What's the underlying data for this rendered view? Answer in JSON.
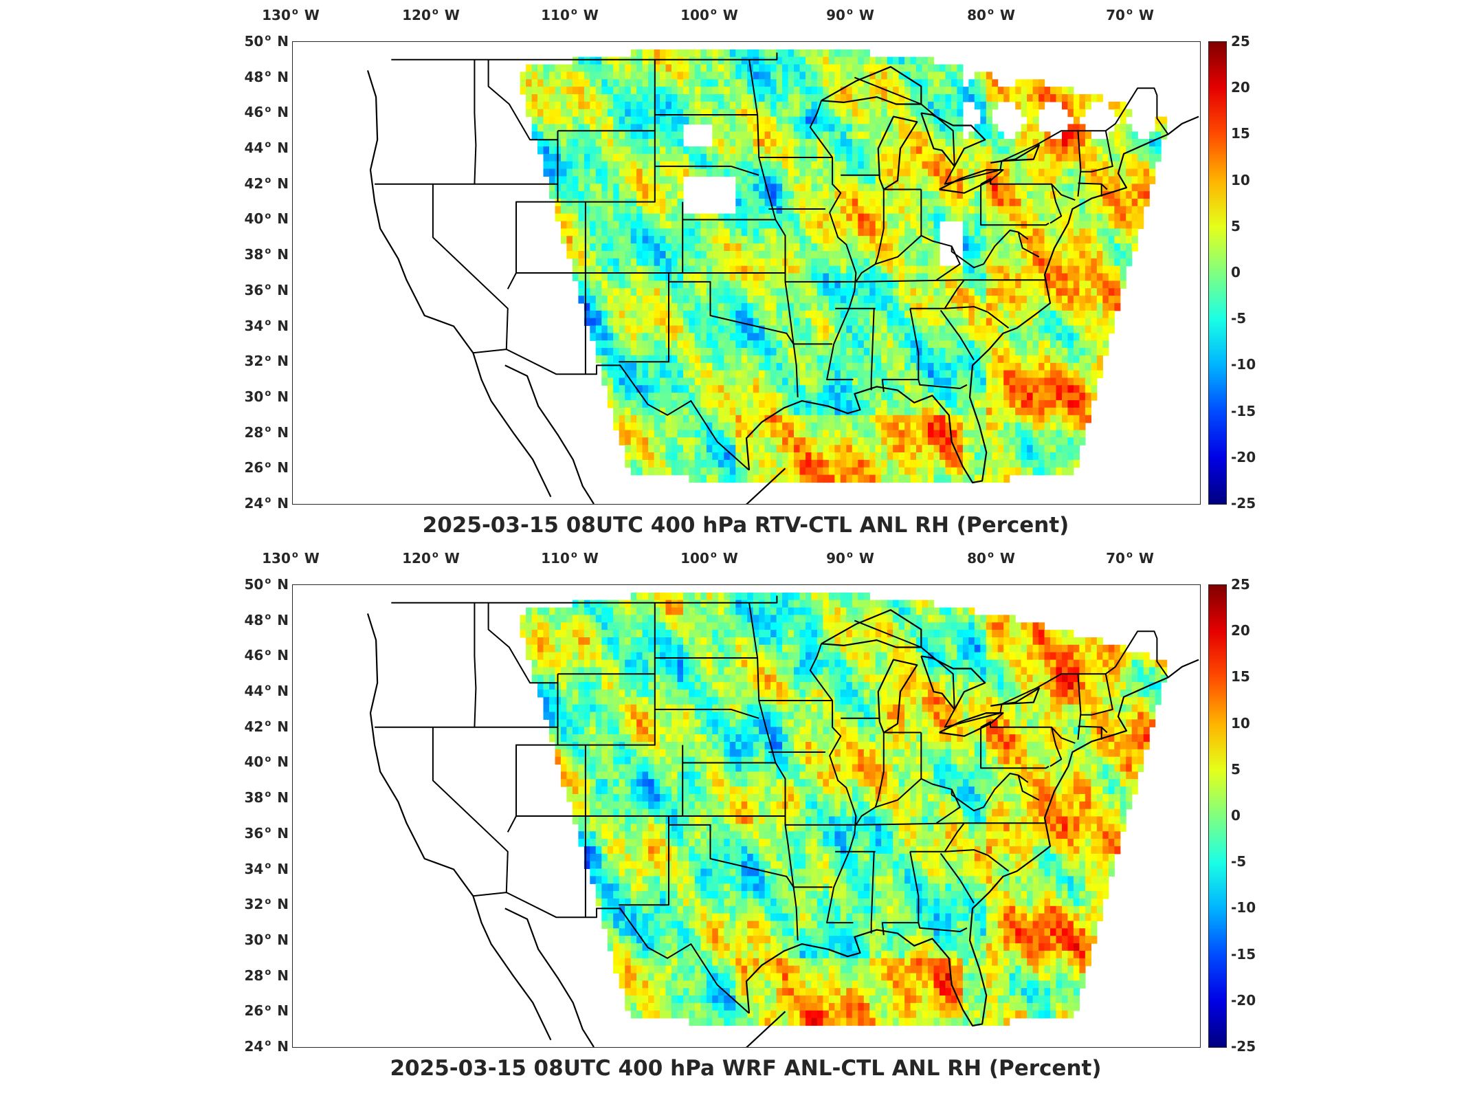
{
  "colormap": "jet",
  "colors": {
    "ocean_blank": "#ffffff",
    "border_line": "#000000",
    "cmap_low": "#00008f",
    "cmap_mid": "#7fff7f",
    "cmap_high": "#800000"
  },
  "lon_labels": [
    "130",
    "120",
    "110",
    "100",
    "90",
    "80",
    "70"
  ],
  "lon_suffix": "W",
  "lat_labels": [
    "50",
    "48",
    "46",
    "44",
    "42",
    "40",
    "38",
    "36",
    "34",
    "32",
    "30",
    "28",
    "26",
    "24"
  ],
  "lat_suffix": "N",
  "colorbar": {
    "range": [
      -25,
      25
    ],
    "ticks": [
      "25",
      "20",
      "15",
      "10",
      "5",
      "0",
      "-5",
      "-10",
      "-15",
      "-20",
      "-25"
    ]
  },
  "panels": [
    {
      "title": "2025-03-15 08UTC 400 hPa RTV-CTL ANL RH (Percent)",
      "has_missing_data": true
    },
    {
      "title": "2025-03-15 08UTC 400 hPa WRF ANL-CTL ANL RH (Percent)",
      "has_missing_data": false
    }
  ]
}
